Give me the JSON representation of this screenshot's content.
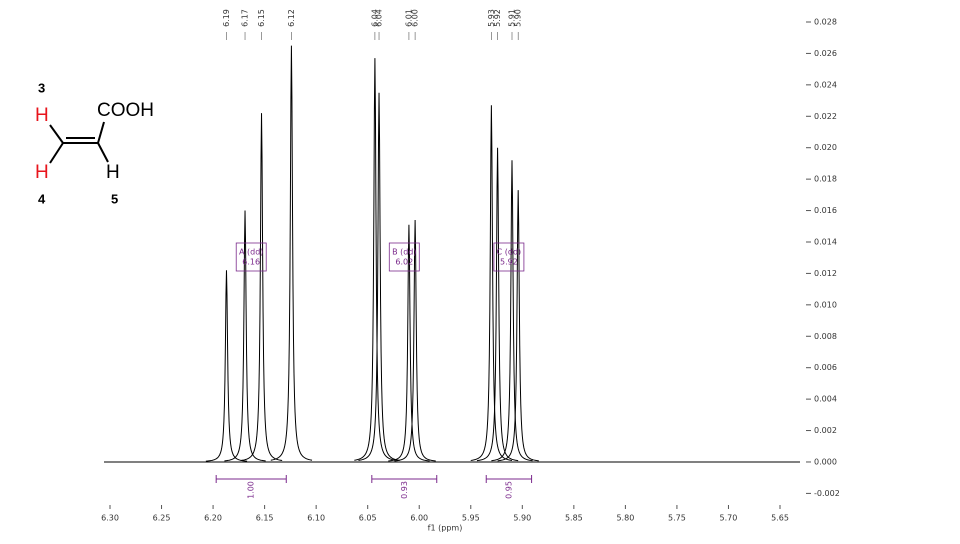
{
  "chart_data": {
    "type": "nmr",
    "x_label": "f1 (ppm)",
    "xlim": [
      6.3,
      5.65
    ],
    "xticks": [
      {
        "value": 6.3,
        "label": "6.30"
      },
      6.25,
      {
        "value": 6.2,
        "label": "6.20"
      },
      6.15,
      {
        "value": 6.1,
        "label": "6.10"
      },
      6.05,
      {
        "value": 6.0,
        "label": "6.00"
      },
      5.95,
      {
        "value": 5.9,
        "label": "5.90"
      },
      5.85,
      {
        "value": 5.8,
        "label": "5.80"
      },
      5.75,
      {
        "value": 5.7,
        "label": "5.70"
      },
      5.65
    ],
    "ylim": [
      -0.002,
      0.028
    ],
    "yticks": [
      {
        "value": -0.002,
        "label": "-0.002"
      },
      {
        "value": 0,
        "label": "0.000"
      },
      0.002,
      0.004,
      0.006,
      0.008,
      {
        "value": 0.01,
        "label": "0.010"
      },
      0.012,
      0.014,
      0.016,
      0.018,
      {
        "value": 0.02,
        "label": "0.020"
      },
      0.022,
      0.024,
      0.026,
      0.028
    ],
    "color": "#000000",
    "annotation_color": "#7b2a8c",
    "peaks": [
      {
        "ppm": 6.187,
        "height": 0.0122,
        "label": "6.19"
      },
      {
        "ppm": 6.169,
        "height": 0.016,
        "label": "6.17"
      },
      {
        "ppm": 6.153,
        "height": 0.0222,
        "label": "6.15"
      },
      {
        "ppm": 6.124,
        "height": 0.0265,
        "label": "6.12"
      },
      {
        "ppm": 6.043,
        "height": 0.0257,
        "label": "6.04"
      },
      {
        "ppm": 6.039,
        "height": 0.0235,
        "label": "6.04"
      },
      {
        "ppm": 6.01,
        "height": 0.0151,
        "label": "6.01"
      },
      {
        "ppm": 6.004,
        "height": 0.0154,
        "label": "6.00"
      },
      {
        "ppm": 5.93,
        "height": 0.0227,
        "label": "5.93"
      },
      {
        "ppm": 5.924,
        "height": 0.02,
        "label": "5.92"
      },
      {
        "ppm": 5.91,
        "height": 0.0192,
        "label": "5.91"
      },
      {
        "ppm": 5.904,
        "height": 0.0173,
        "label": "5.90"
      }
    ],
    "multiplets": [
      {
        "label": "A (dd)",
        "shift": 6.16,
        "integral": "1.00",
        "range": [
          6.197,
          6.129
        ]
      },
      {
        "label": "B (dd)",
        "shift": 6.02,
        "integral": "0.93",
        "range": [
          6.046,
          5.983
        ]
      },
      {
        "label": "C (dd)",
        "shift": 5.92,
        "integral": "0.95",
        "range": [
          5.935,
          5.891
        ]
      }
    ]
  },
  "molecule": {
    "group": "COOH",
    "h3": "H",
    "h4": "H",
    "h5": "H",
    "n3": "3",
    "n4": "4",
    "n5": "5"
  }
}
